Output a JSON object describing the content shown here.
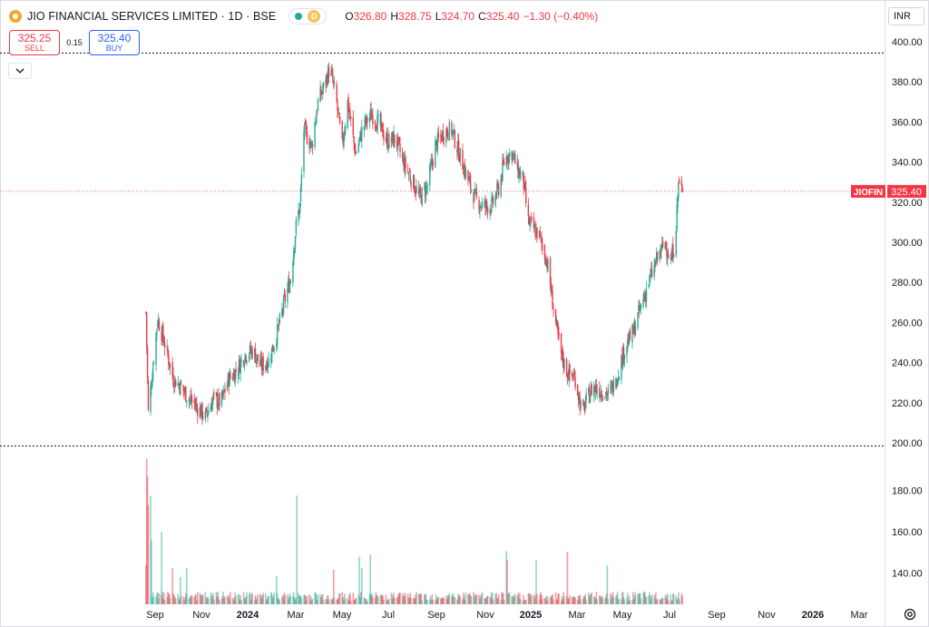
{
  "header": {
    "title": "JIO FINANCIAL SERVICES LIMITED · 1D · BSE",
    "badge": "D",
    "ohlc": [
      {
        "label": "O",
        "value": "326.80"
      },
      {
        "label": "H",
        "value": "328.75"
      },
      {
        "label": "L",
        "value": "324.70"
      },
      {
        "label": "C",
        "value": "325.40"
      },
      {
        "label": "",
        "value": "−1.30 (−0.40%)"
      }
    ]
  },
  "trade": {
    "sell_price": "325.25",
    "sell_label": "SELL",
    "spread": "0.15",
    "buy_price": "325.40",
    "buy_label": "BUY"
  },
  "currency": "INR",
  "price_tag": {
    "symbol": "JIOFIN",
    "price": "325.40"
  },
  "colors": {
    "up": "#22ab94",
    "down": "#f23645",
    "blue": "#2962ff"
  },
  "chart_data": {
    "type": "candlestick",
    "price_axis_labels": [
      "400.00",
      "380.00",
      "360.00",
      "340.00",
      "320.00",
      "300.00",
      "280.00",
      "260.00",
      "240.00",
      "220.00",
      "200.00"
    ],
    "volume_axis_labels": [
      "180.00",
      "160.00",
      "140.00"
    ],
    "x_labels": [
      "Sep",
      "Nov",
      "2024",
      "Mar",
      "May",
      "Jul",
      "Sep",
      "Nov",
      "2025",
      "Mar",
      "May",
      "Jul",
      "Sep",
      "Nov",
      "2026",
      "Mar"
    ],
    "ylim": [
      200,
      400
    ],
    "last_price": 325.4,
    "path": [
      [
        "2023-08-21",
        265
      ],
      [
        "2023-08-24",
        215
      ],
      [
        "2023-09-05",
        262
      ],
      [
        "2023-09-15",
        248
      ],
      [
        "2023-09-25",
        232
      ],
      [
        "2023-10-05",
        228
      ],
      [
        "2023-10-15",
        222
      ],
      [
        "2023-10-25",
        218
      ],
      [
        "2023-11-05",
        213
      ],
      [
        "2023-11-15",
        222
      ],
      [
        "2023-11-25",
        220
      ],
      [
        "2023-12-05",
        232
      ],
      [
        "2023-12-15",
        236
      ],
      [
        "2023-12-25",
        244
      ],
      [
        "2024-01-05",
        246
      ],
      [
        "2024-01-15",
        238
      ],
      [
        "2024-01-25",
        241
      ],
      [
        "2024-02-05",
        255
      ],
      [
        "2024-02-15",
        272
      ],
      [
        "2024-02-22",
        282
      ],
      [
        "2024-03-01",
        312
      ],
      [
        "2024-03-05",
        318
      ],
      [
        "2024-03-10",
        356
      ],
      [
        "2024-03-20",
        348
      ],
      [
        "2024-03-28",
        370
      ],
      [
        "2024-04-05",
        378
      ],
      [
        "2024-04-12",
        387
      ],
      [
        "2024-04-20",
        372
      ],
      [
        "2024-04-28",
        348
      ],
      [
        "2024-05-05",
        370
      ],
      [
        "2024-05-15",
        344
      ],
      [
        "2024-05-25",
        358
      ],
      [
        "2024-06-05",
        364
      ],
      [
        "2024-06-15",
        358
      ],
      [
        "2024-06-25",
        350
      ],
      [
        "2024-07-05",
        352
      ],
      [
        "2024-07-15",
        340
      ],
      [
        "2024-07-25",
        332
      ],
      [
        "2024-08-05",
        322
      ],
      [
        "2024-08-15",
        328
      ],
      [
        "2024-08-25",
        348
      ],
      [
        "2024-09-05",
        355
      ],
      [
        "2024-09-15",
        356
      ],
      [
        "2024-09-25",
        344
      ],
      [
        "2024-10-05",
        332
      ],
      [
        "2024-10-15",
        322
      ],
      [
        "2024-10-25",
        318
      ],
      [
        "2024-11-05",
        318
      ],
      [
        "2024-11-15",
        328
      ],
      [
        "2024-11-22",
        342
      ],
      [
        "2024-12-01",
        345
      ],
      [
        "2024-12-08",
        336
      ],
      [
        "2024-12-15",
        332
      ],
      [
        "2024-12-22",
        310
      ],
      [
        "2025-01-05",
        303
      ],
      [
        "2025-01-15",
        290
      ],
      [
        "2025-01-25",
        262
      ],
      [
        "2025-02-01",
        245
      ],
      [
        "2025-02-10",
        235
      ],
      [
        "2025-02-20",
        232
      ],
      [
        "2025-03-01",
        214
      ],
      [
        "2025-03-05",
        220
      ],
      [
        "2025-03-15",
        228
      ],
      [
        "2025-03-25",
        226
      ],
      [
        "2025-04-05",
        224
      ],
      [
        "2025-04-15",
        234
      ],
      [
        "2025-04-25",
        248
      ],
      [
        "2025-05-05",
        255
      ],
      [
        "2025-05-15",
        268
      ],
      [
        "2025-05-25",
        280
      ],
      [
        "2025-06-05",
        292
      ],
      [
        "2025-06-15",
        300
      ],
      [
        "2025-06-22",
        290
      ],
      [
        "2025-06-28",
        302
      ],
      [
        "2025-07-02",
        330
      ],
      [
        "2025-07-07",
        325.4
      ]
    ]
  }
}
